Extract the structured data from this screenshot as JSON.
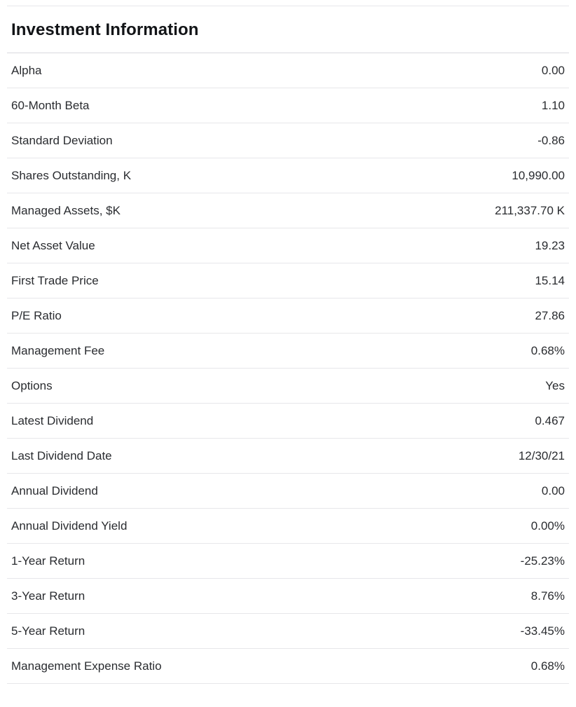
{
  "section": {
    "title": "Investment Information",
    "rows": [
      {
        "label": "Alpha",
        "value": "0.00"
      },
      {
        "label": "60-Month Beta",
        "value": "1.10"
      },
      {
        "label": "Standard Deviation",
        "value": "-0.86"
      },
      {
        "label": "Shares Outstanding, K",
        "value": "10,990.00"
      },
      {
        "label": "Managed Assets, $K",
        "value": "211,337.70 K"
      },
      {
        "label": "Net Asset Value",
        "value": "19.23"
      },
      {
        "label": "First Trade Price",
        "value": "15.14"
      },
      {
        "label": "P/E Ratio",
        "value": "27.86"
      },
      {
        "label": "Management Fee",
        "value": "0.68%"
      },
      {
        "label": "Options",
        "value": "Yes"
      },
      {
        "label": "Latest Dividend",
        "value": "0.467"
      },
      {
        "label": "Last Dividend Date",
        "value": "12/30/21"
      },
      {
        "label": "Annual Dividend",
        "value": "0.00"
      },
      {
        "label": "Annual Dividend Yield",
        "value": "0.00%"
      },
      {
        "label": "1-Year Return",
        "value": "-25.23%"
      },
      {
        "label": "3-Year Return",
        "value": "8.76%"
      },
      {
        "label": "5-Year Return",
        "value": "-33.45%"
      },
      {
        "label": "Management Expense Ratio",
        "value": "0.68%"
      }
    ]
  }
}
